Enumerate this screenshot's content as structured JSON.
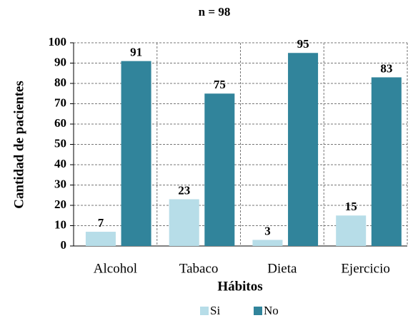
{
  "chart_data": {
    "type": "bar",
    "title": "n = 98",
    "categories": [
      "Alcohol",
      "Tabaco",
      "Dieta",
      "Ejercicio"
    ],
    "series": [
      {
        "name": "Si",
        "color": "#b7dde8",
        "values": [
          7,
          23,
          3,
          15
        ]
      },
      {
        "name": "No",
        "color": "#31849b",
        "values": [
          91,
          75,
          95,
          83
        ]
      }
    ],
    "x_label": "Hábitos",
    "y_label": "Cantidad de pacientes",
    "ylim": [
      0,
      100
    ],
    "yticks": [
      0,
      10,
      20,
      30,
      40,
      50,
      60,
      70,
      80,
      90,
      100
    ],
    "grid": true,
    "legend": "bottom"
  }
}
